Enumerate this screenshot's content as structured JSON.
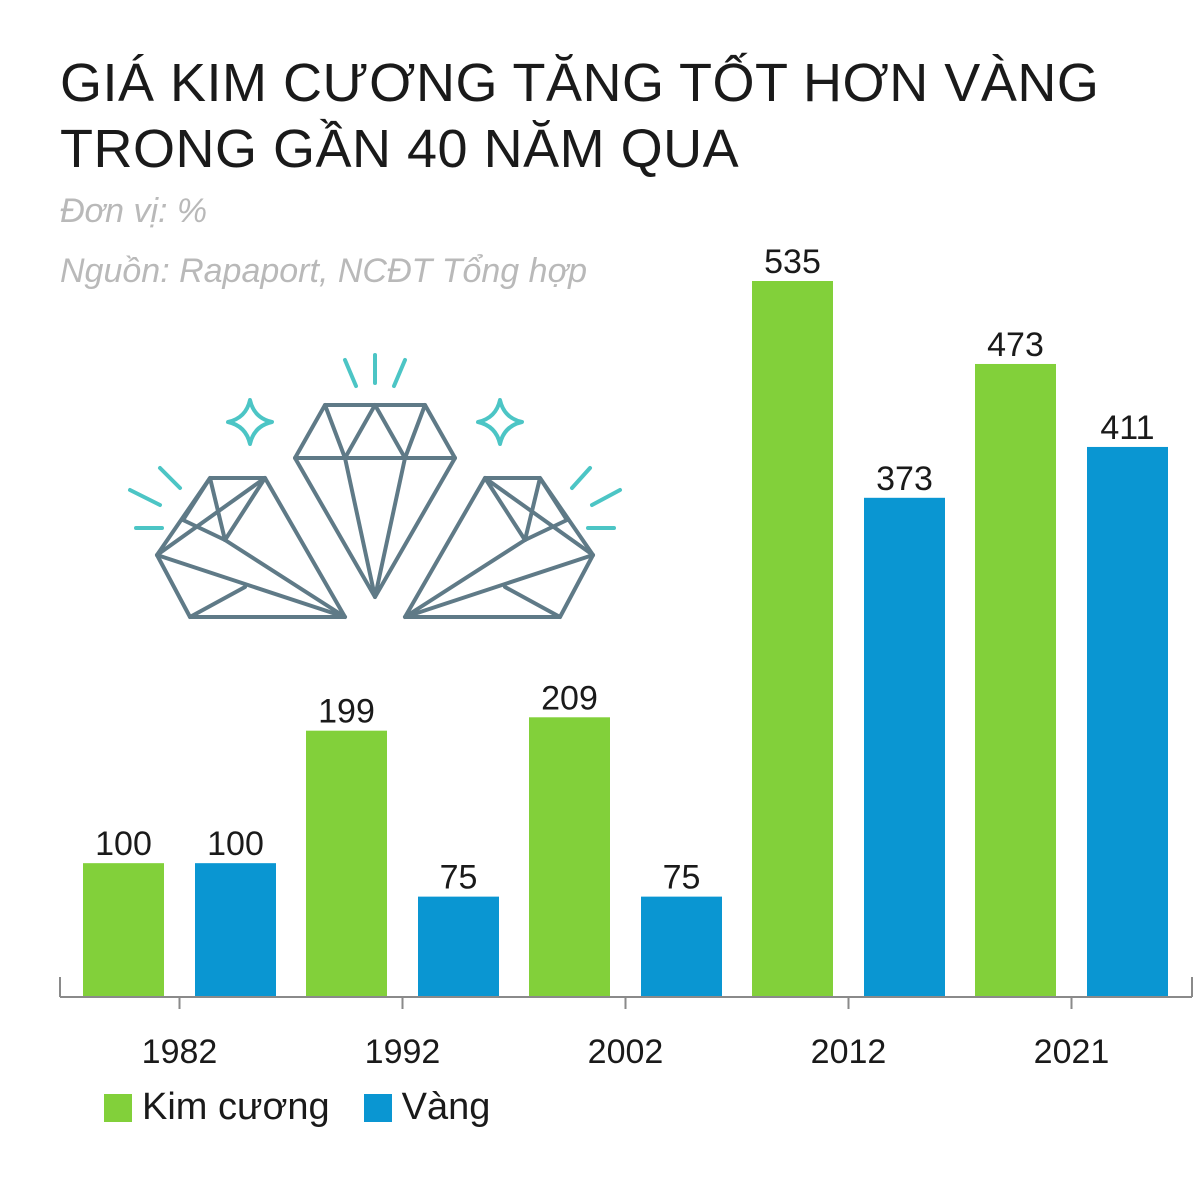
{
  "chart_data": {
    "type": "bar",
    "title": "GIÁ KIM CƯƠNG TĂNG TỐT HƠN VÀNG TRONG GẦN 40 NĂM QUA",
    "unit": "Đơn vị: %",
    "source": "Nguồn: Rapaport, NCĐT Tổng hợp",
    "categories": [
      "1982",
      "1992",
      "2002",
      "2012",
      "2021"
    ],
    "series": [
      {
        "name": "Kim cương",
        "color": "#82d03a",
        "values": [
          100,
          199,
          209,
          535,
          473
        ]
      },
      {
        "name": "Vàng",
        "color": "#0a96d2",
        "values": [
          100,
          75,
          75,
          373,
          411
        ]
      }
    ],
    "ylim": [
      0,
      535
    ],
    "grid": false,
    "legend_position": "bottom-left",
    "decoration_icon": "diamonds-icon"
  }
}
